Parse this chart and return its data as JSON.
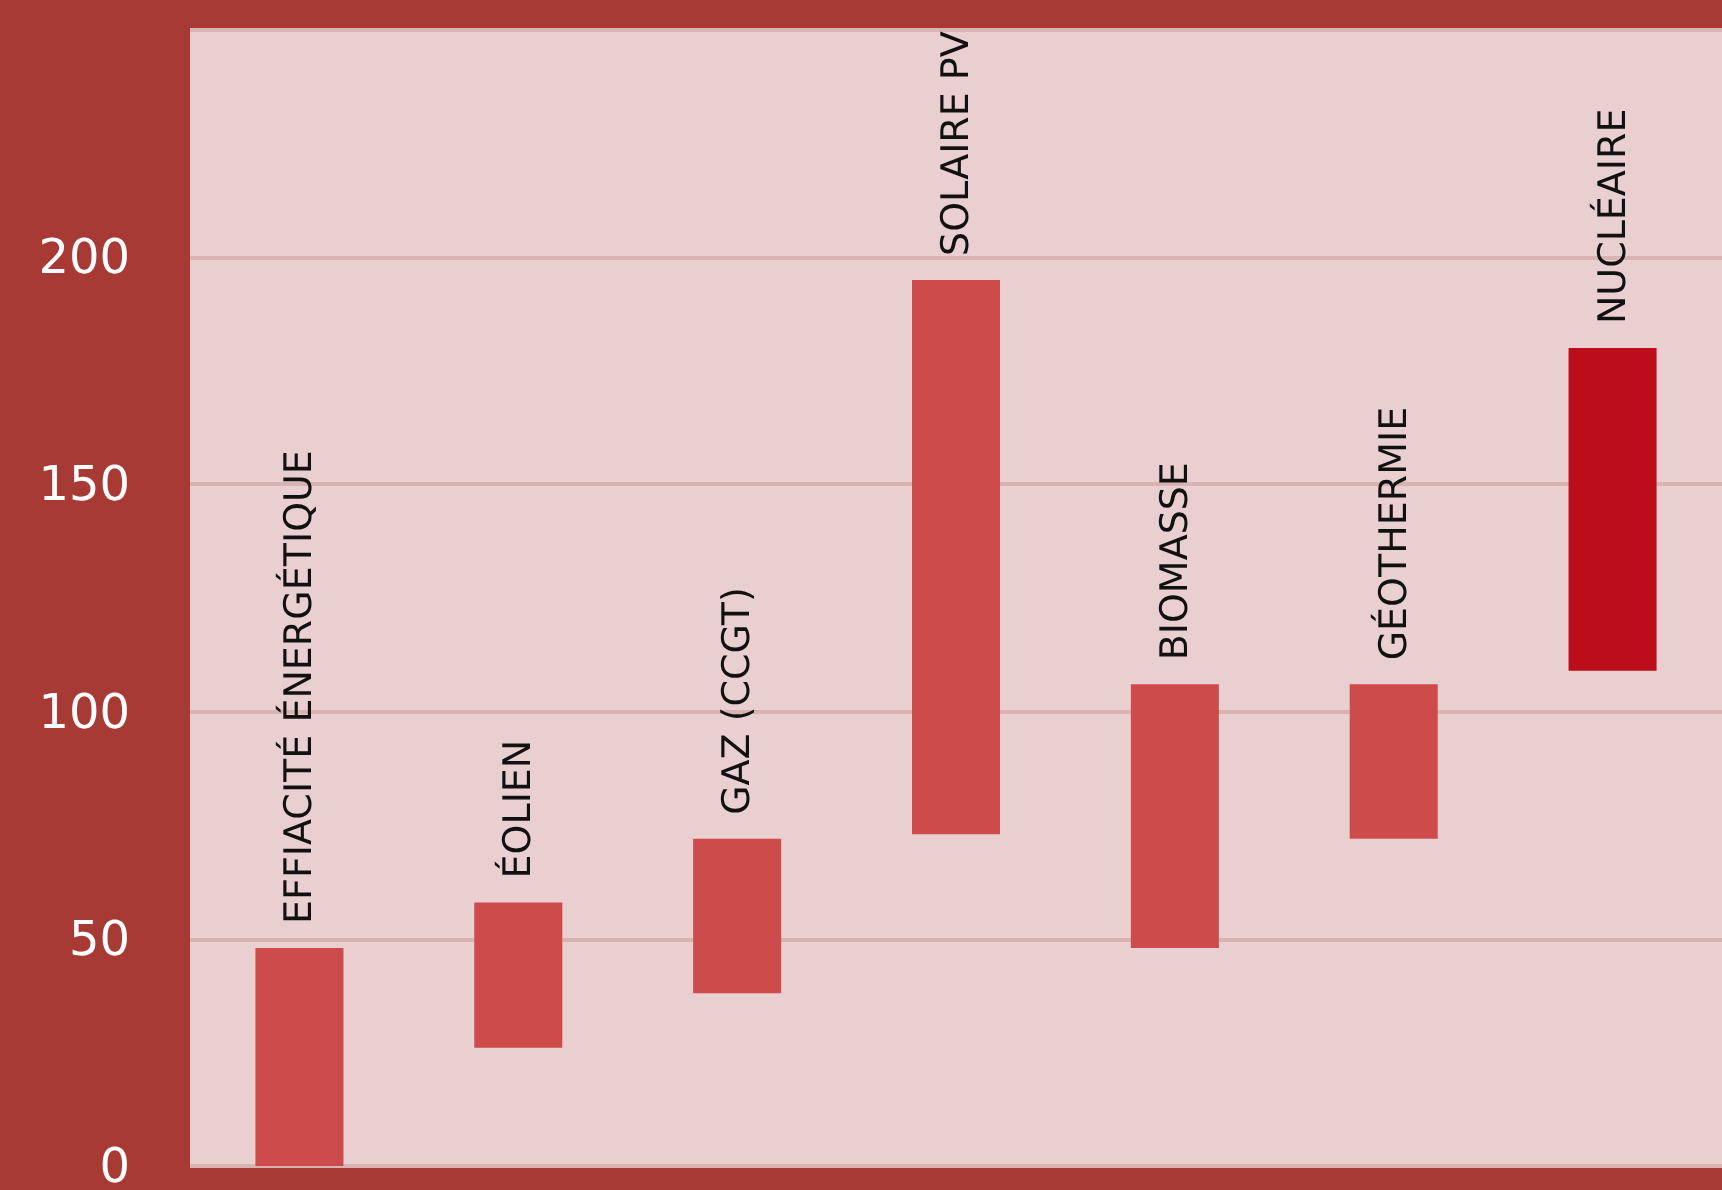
{
  "chart_data": {
    "type": "bar",
    "categories": [
      "EFFIACITÉ ÉNERGÉTIQUE",
      "ÉOLIEN",
      "GAZ (CCGT)",
      "SOLAIRE PV",
      "BIOMASSE",
      "GÉOTHERMIE",
      "NUCLÉAIRE"
    ],
    "base": [
      0,
      26,
      38,
      73,
      48,
      72,
      109
    ],
    "values": [
      48,
      32,
      34,
      122,
      58,
      34,
      71
    ],
    "colors": [
      "#cd4b4b",
      "#cd4b4b",
      "#cd4b4b",
      "#cd4b4b",
      "#cd4b4b",
      "#cd4b4b",
      "#bb0d1a"
    ],
    "ylim": [
      0,
      250
    ],
    "yticks": [
      0,
      50,
      100,
      150,
      200
    ],
    "grid": "y",
    "tick_labels": "y"
  }
}
